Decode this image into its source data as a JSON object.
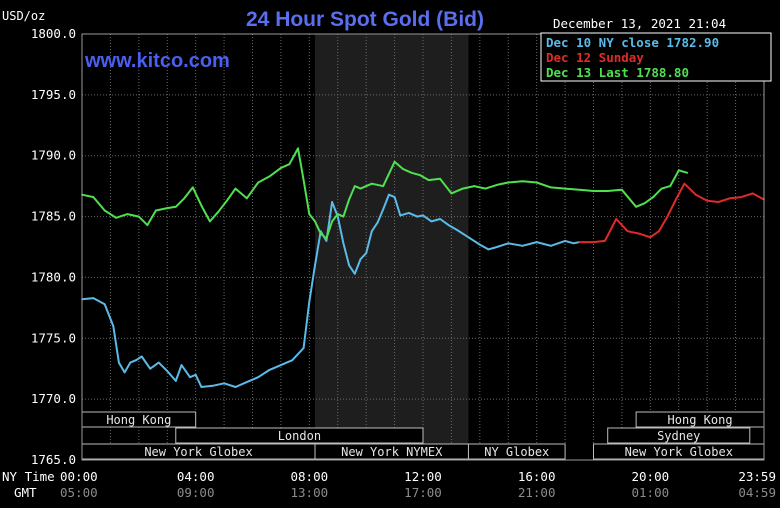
{
  "chart_data": {
    "type": "line",
    "title": "24 Hour Spot Gold (Bid)",
    "ylabel": "USD/oz",
    "timestamp": "December 13, 2021 21:04",
    "watermark": "www.kitco.com",
    "ylim": [
      1765.0,
      1800.0
    ],
    "yticks": [
      "1800.0",
      "1795.0",
      "1790.0",
      "1785.0",
      "1780.0",
      "1775.0",
      "1770.0",
      "1765.0"
    ],
    "xlim": [
      0,
      24
    ],
    "row_labels": {
      "ny": "NY Time",
      "gmt": "GMT"
    },
    "xticks_ny": [
      "00:00",
      "04:00",
      "08:00",
      "12:00",
      "16:00",
      "20:00",
      "23:59"
    ],
    "xticks_gmt": [
      "05:00",
      "09:00",
      "13:00",
      "17:00",
      "21:00",
      "01:00",
      "04:59"
    ],
    "grid": true,
    "legend_placement": "top-right",
    "highlight_band_hours": [
      8.2,
      13.6
    ],
    "series": [
      {
        "name": "Dec 10 NY close 1782.90",
        "color": "#5bbbe8",
        "x": [
          0.0,
          0.4,
          0.8,
          1.1,
          1.3,
          1.5,
          1.7,
          1.9,
          2.1,
          2.4,
          2.7,
          3.0,
          3.3,
          3.5,
          3.8,
          4.0,
          4.2,
          4.6,
          5.0,
          5.4,
          5.8,
          6.2,
          6.6,
          7.0,
          7.4,
          7.8,
          8.0,
          8.2,
          8.4,
          8.6,
          8.8,
          9.0,
          9.2,
          9.4,
          9.6,
          9.8,
          10.0,
          10.2,
          10.4,
          10.6,
          10.8,
          11.0,
          11.2,
          11.5,
          11.8,
          12.0,
          12.3,
          12.6,
          12.9,
          13.2,
          13.6,
          14.0,
          14.3,
          14.6,
          15.0,
          15.5,
          16.0,
          16.5,
          17.0,
          17.3,
          17.5
        ],
        "y": [
          1778.2,
          1778.3,
          1777.8,
          1776.0,
          1773.0,
          1772.2,
          1773.0,
          1773.2,
          1773.5,
          1772.5,
          1773.0,
          1772.3,
          1771.5,
          1772.8,
          1771.8,
          1772.0,
          1771.0,
          1771.1,
          1771.3,
          1771.0,
          1771.4,
          1771.8,
          1772.4,
          1772.8,
          1773.2,
          1774.2,
          1778.0,
          1781.0,
          1783.8,
          1783.0,
          1786.2,
          1785.0,
          1782.8,
          1781.0,
          1780.3,
          1781.5,
          1782.0,
          1783.8,
          1784.5,
          1785.6,
          1786.8,
          1786.6,
          1785.1,
          1785.3,
          1785.0,
          1785.1,
          1784.6,
          1784.8,
          1784.3,
          1783.9,
          1783.3,
          1782.7,
          1782.3,
          1782.5,
          1782.8,
          1782.6,
          1782.9,
          1782.6,
          1783.0,
          1782.8,
          1782.9
        ]
      },
      {
        "name": "Dec 12 Sunday",
        "color": "#e02a2a",
        "x": [
          17.5,
          18.0,
          18.4,
          18.8,
          19.2,
          19.6,
          20.0,
          20.3,
          20.6,
          20.9,
          21.2,
          21.6,
          22.0,
          22.4,
          22.8,
          23.2,
          23.6,
          24.0
        ],
        "y": [
          1782.9,
          1782.9,
          1783.0,
          1784.8,
          1783.8,
          1783.6,
          1783.3,
          1783.8,
          1785.0,
          1786.4,
          1787.7,
          1786.8,
          1786.3,
          1786.2,
          1786.5,
          1786.6,
          1786.9,
          1786.4
        ]
      },
      {
        "name": "Dec 13 Last 1788.80",
        "color": "#4fe04f",
        "x": [
          0.0,
          0.4,
          0.8,
          1.2,
          1.6,
          2.0,
          2.3,
          2.6,
          3.0,
          3.3,
          3.6,
          3.9,
          4.2,
          4.5,
          4.8,
          5.1,
          5.4,
          5.8,
          6.2,
          6.6,
          7.0,
          7.3,
          7.6,
          7.8,
          8.0,
          8.2,
          8.4,
          8.6,
          8.8,
          9.0,
          9.2,
          9.4,
          9.6,
          9.8,
          10.2,
          10.6,
          11.0,
          11.3,
          11.6,
          11.9,
          12.2,
          12.6,
          13.0,
          13.4,
          13.8,
          14.2,
          14.6,
          15.0,
          15.5,
          16.0,
          16.5,
          17.0,
          17.5,
          18.0,
          18.5,
          19.0,
          19.5,
          19.8,
          20.1,
          20.4,
          20.7,
          21.0,
          21.3
        ],
        "y": [
          1786.8,
          1786.6,
          1785.5,
          1784.9,
          1785.2,
          1785.0,
          1784.3,
          1785.5,
          1785.7,
          1785.8,
          1786.5,
          1787.4,
          1785.9,
          1784.6,
          1785.4,
          1786.3,
          1787.3,
          1786.5,
          1787.8,
          1788.3,
          1789.0,
          1789.3,
          1790.6,
          1788.0,
          1785.2,
          1784.6,
          1783.6,
          1783.2,
          1784.6,
          1785.2,
          1785.0,
          1786.4,
          1787.5,
          1787.3,
          1787.7,
          1787.5,
          1789.5,
          1788.9,
          1788.6,
          1788.4,
          1788.0,
          1788.1,
          1786.9,
          1787.3,
          1787.5,
          1787.3,
          1787.6,
          1787.8,
          1787.9,
          1787.8,
          1787.4,
          1787.3,
          1787.2,
          1787.1,
          1787.1,
          1787.2,
          1785.8,
          1786.1,
          1786.6,
          1787.3,
          1787.5,
          1788.8,
          1788.6
        ]
      }
    ],
    "sessions": [
      {
        "label": "Hong Kong",
        "row": 0,
        "start": 0.0,
        "end": 4.0
      },
      {
        "label": "Hong Kong",
        "row": 0,
        "start": 19.5,
        "end": 24.0
      },
      {
        "label": "London",
        "row": 1,
        "start": 3.3,
        "end": 12.0
      },
      {
        "label": "Sydney",
        "row": 1,
        "start": 18.5,
        "end": 23.5
      },
      {
        "label": "New York Globex",
        "row": 2,
        "start": 0.0,
        "end": 8.2
      },
      {
        "label": "New York NYMEX",
        "row": 2,
        "start": 8.2,
        "end": 13.6
      },
      {
        "label": "NY Globex",
        "row": 2,
        "start": 13.6,
        "end": 17.0
      },
      {
        "label": "New York Globex",
        "row": 2,
        "start": 18.0,
        "end": 24.0
      }
    ]
  }
}
